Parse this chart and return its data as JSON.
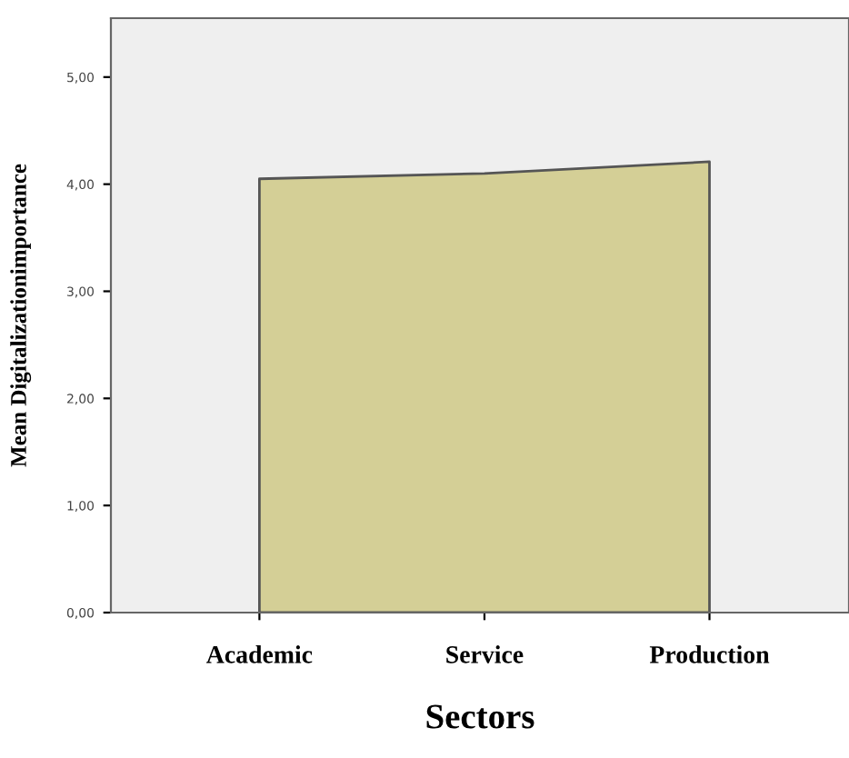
{
  "chart_data": {
    "type": "area",
    "xlabel": "Sectors",
    "ylabel": "Mean Digitalizationimportance",
    "categories": [
      "Academic",
      "Service",
      "Production"
    ],
    "values": [
      4.05,
      4.1,
      4.21
    ],
    "color": "#d4cf96",
    "ylim": [
      0,
      5.55
    ],
    "yticks": [
      {
        "value": 0,
        "label": "0,00"
      },
      {
        "value": 1,
        "label": "1,00"
      },
      {
        "value": 2,
        "label": "2,00"
      },
      {
        "value": 3,
        "label": "3,00"
      },
      {
        "value": 4,
        "label": "4,00"
      },
      {
        "value": 5,
        "label": "5,00"
      }
    ],
    "grid": false,
    "legend": false
  }
}
